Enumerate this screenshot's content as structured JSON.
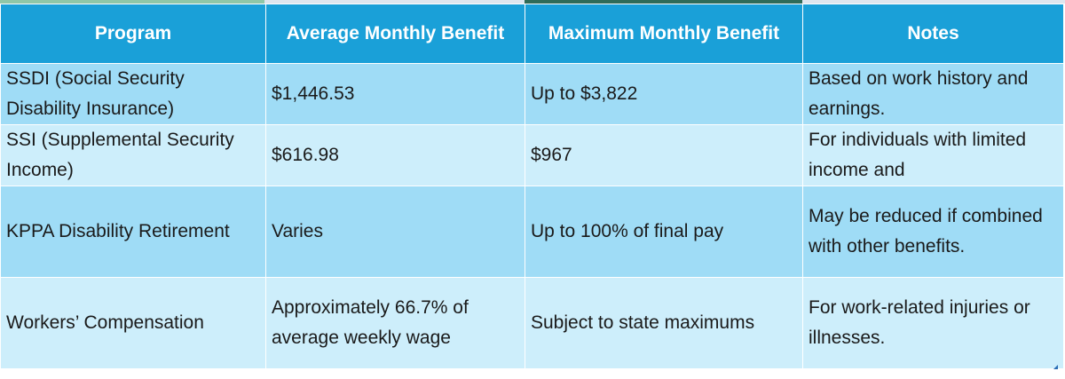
{
  "table": {
    "headers": [
      "Program",
      "Average Monthly Benefit",
      "Maximum Monthly Benefit",
      "Notes"
    ],
    "rows": [
      [
        "SSDI (Social Security Disability Insurance)",
        "$1,446.53",
        "Up to $3,822",
        "Based on work history and earnings."
      ],
      [
        "SSI (Supplemental Security Income)",
        "$616.98",
        "$967",
        "For individuals with limited income and"
      ],
      [
        "KPPA Disability Retirement",
        "Varies",
        "Up to 100% of final pay",
        "May be reduced if combined with other benefits."
      ],
      [
        "Workers’ Compensation",
        "Approximately 66.7% of average weekly wage",
        "Subject to state maximums",
        "For work-related injuries or illnesses."
      ]
    ]
  },
  "colors": {
    "header_bg": "#1aa0d8",
    "header_text": "#ffffff",
    "row_odd_bg": "#9fdcf6",
    "row_even_bg": "#cdeefb",
    "resize_handle": "#2a6db5"
  }
}
